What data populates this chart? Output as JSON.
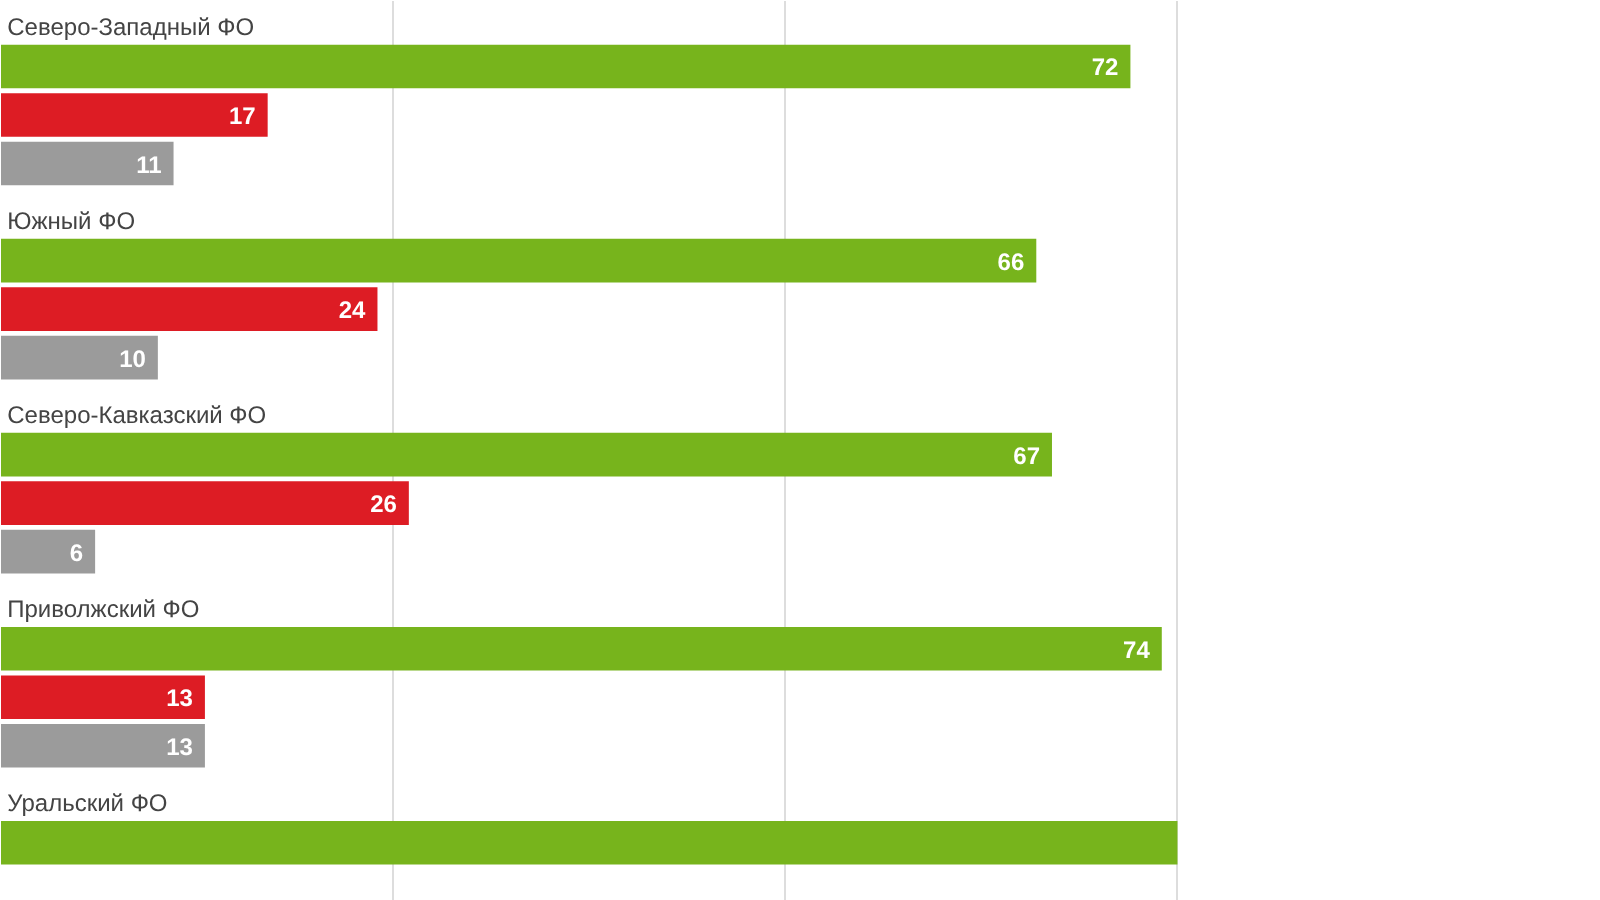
{
  "chart_data": {
    "type": "bar",
    "orientation": "horizontal",
    "categories": [
      "Северо-Западный ФО",
      "Южный ФО",
      "Северо-Кавказский ФО",
      "Приволжский ФО",
      "Уральский ФО"
    ],
    "series": [
      {
        "color": "#77b41c",
        "values": [
          72,
          66,
          67,
          74,
          75
        ],
        "value_labels": [
          "72",
          "66",
          "67",
          "74",
          null
        ]
      },
      {
        "color": "#dd1c24",
        "values": [
          17,
          24,
          26,
          13,
          null
        ],
        "value_labels": [
          "17",
          "24",
          "26",
          "13",
          null
        ]
      },
      {
        "color": "#9b9b9b",
        "values": [
          11,
          10,
          6,
          13,
          null
        ],
        "value_labels": [
          "11",
          "10",
          "6",
          "13",
          null
        ]
      }
    ],
    "xlim": [
      0,
      102
    ],
    "xticks": [
      {
        "value": 0,
        "label": null
      },
      {
        "value": 25,
        "label": null
      },
      {
        "value": 50,
        "label": null
      },
      {
        "value": 75,
        "label": null
      }
    ],
    "grid": "x",
    "tick_labels": false
  }
}
